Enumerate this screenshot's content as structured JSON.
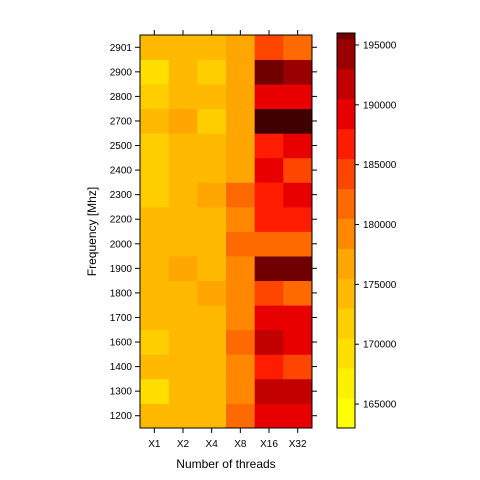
{
  "chart_data": {
    "type": "heatmap",
    "title": "",
    "xlabel": "Number of threads",
    "ylabel": "Frequency [Mhz]",
    "x_categories": [
      "X1",
      "X2",
      "X4",
      "X8",
      "X16",
      "X32"
    ],
    "y_categories": [
      "1200",
      "1300",
      "1400",
      "1600",
      "1700",
      "1800",
      "1900",
      "2000",
      "2200",
      "2300",
      "2400",
      "2500",
      "2700",
      "2800",
      "2900",
      "2901"
    ],
    "values": [
      [
        171000,
        171500,
        172500,
        178500,
        186500,
        186500
      ],
      [
        166500,
        172000,
        171500,
        176500,
        188500,
        188500
      ],
      [
        170500,
        170500,
        171000,
        176500,
        185000,
        181500
      ],
      [
        168500,
        171000,
        171000,
        178500,
        189000,
        187000
      ],
      [
        170500,
        172500,
        172500,
        177000,
        187000,
        185500
      ],
      [
        171000,
        172000,
        173000,
        177500,
        180500,
        178500
      ],
      [
        171000,
        173000,
        171500,
        177500,
        193500,
        193500
      ],
      [
        170500,
        171500,
        171500,
        178000,
        179500,
        179500
      ],
      [
        171500,
        172500,
        171500,
        176500,
        184500,
        184500
      ],
      [
        169500,
        171500,
        173000,
        179500,
        184500,
        186000
      ],
      [
        169000,
        171000,
        171000,
        174500,
        186500,
        181500
      ],
      [
        169000,
        171000,
        171000,
        174500,
        185000,
        186500
      ],
      [
        172000,
        173500,
        170000,
        174500,
        196000,
        196000
      ],
      [
        168500,
        171500,
        171500,
        173500,
        187000,
        187000
      ],
      [
        167000,
        171500,
        169000,
        174000,
        194500,
        190500
      ],
      [
        171500,
        171500,
        171500,
        173000,
        182500,
        179000
      ]
    ],
    "colorbar": {
      "min": 163000,
      "max": 196000,
      "breaks": [
        163000,
        165500,
        168000,
        170500,
        173000,
        175500,
        178000,
        180500,
        183000,
        185500,
        188000,
        190500,
        193000,
        195500
      ],
      "ticks": [
        "165000",
        "170000",
        "175000",
        "180000",
        "185000",
        "190000",
        "195000"
      ],
      "colors": [
        "#FFFF00",
        "#FFF000",
        "#FFDF00",
        "#FFCE00",
        "#FFBA00",
        "#FFA600",
        "#FF8800",
        "#FF6A00",
        "#FF4600",
        "#FF1C00",
        "#E80000",
        "#C20000",
        "#9A0000",
        "#700000",
        "#3E0000",
        "#000000"
      ]
    },
    "grid": false,
    "legend": "right"
  }
}
